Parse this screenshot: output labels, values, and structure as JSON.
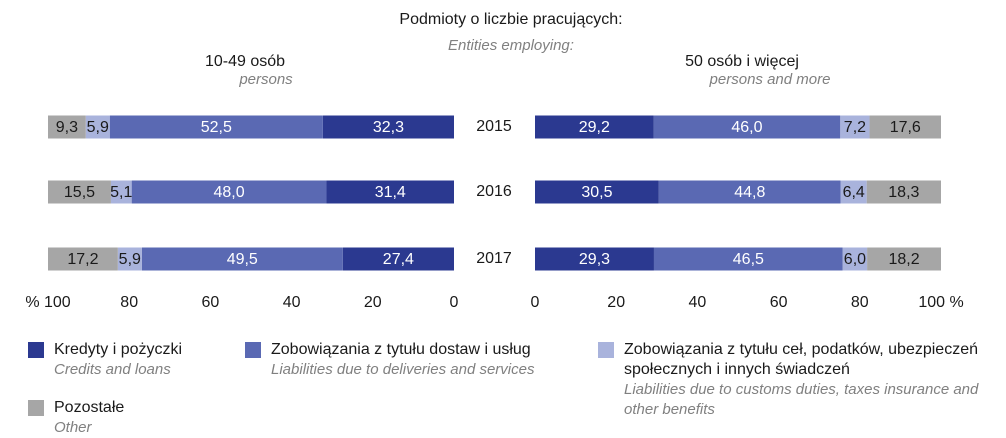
{
  "chart_data": {
    "type": "bar",
    "title": "Podmioty o liczbie pracujących:",
    "subtitle": "Entities employing:",
    "categories": [
      "2015",
      "2016",
      "2017"
    ],
    "series": [
      {
        "name": "Kredyty i pożyczki",
        "name_en": "Credits and loans",
        "color": "#2b3990"
      },
      {
        "name": "Zobowiązania z tytułu dostaw i usług",
        "name_en": "Liabilities due to deliveries and services",
        "color": "#5a69b3"
      },
      {
        "name": "Zobowiązania z tytułu ceł, podatków, ubezpieczeń społecznych i innych świadczeń",
        "name_en": "Liabilities due to customs duties, taxes insurance and other benefits",
        "color": "#a9b3dc"
      },
      {
        "name": "Pozostałe",
        "name_en": "Other",
        "color": "#a6a6a6"
      }
    ],
    "panels": [
      {
        "title": "10-49 osób",
        "subtitle": "persons",
        "xlim": [
          100,
          0
        ],
        "xticks": [
          {
            "value": 100,
            "label": "% 100"
          },
          80,
          60,
          40,
          20,
          0
        ],
        "series": [
          {
            "values": [
              32.3,
              31.4,
              27.4
            ],
            "value_labels": [
              "32,3",
              "31,4",
              "27,4"
            ]
          },
          {
            "values": [
              52.5,
              48.0,
              49.5
            ],
            "value_labels": [
              "52,5",
              "48,0",
              "49,5"
            ]
          },
          {
            "values": [
              5.9,
              5.1,
              5.9
            ],
            "value_labels": [
              "5,9",
              "5,1",
              "5,9"
            ]
          },
          {
            "values": [
              9.3,
              15.5,
              17.2
            ],
            "value_labels": [
              "9,3",
              "15,5",
              "17,2"
            ]
          }
        ]
      },
      {
        "title": "50 osób i więcej",
        "subtitle": "persons and more",
        "xlim": [
          0,
          100
        ],
        "xticks": [
          0,
          20,
          40,
          60,
          80,
          {
            "value": 100,
            "label": "100 %"
          }
        ],
        "series": [
          {
            "values": [
              29.2,
              30.5,
              29.3
            ],
            "value_labels": [
              "29,2",
              "30,5",
              "29,3"
            ]
          },
          {
            "values": [
              46.0,
              44.8,
              46.5
            ],
            "value_labels": [
              "46,0",
              "44,8",
              "46,5"
            ]
          },
          {
            "values": [
              7.2,
              6.4,
              6.0
            ],
            "value_labels": [
              "7,2",
              "6,4",
              "6,0"
            ]
          },
          {
            "values": [
              17.6,
              18.3,
              18.2
            ],
            "value_labels": [
              "17,6",
              "18,3",
              "18,2"
            ]
          }
        ]
      }
    ]
  }
}
